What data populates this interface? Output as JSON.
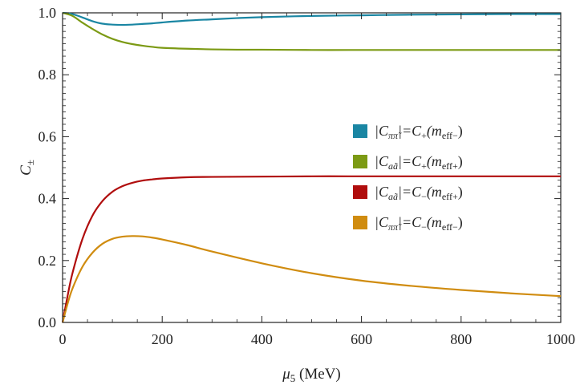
{
  "chart_data": {
    "type": "line",
    "title": "",
    "xlabel": "μ5 (MeV)",
    "ylabel": "C±",
    "xlim": [
      0,
      1000
    ],
    "ylim": [
      0,
      1.0
    ],
    "x_ticks": [
      0,
      200,
      400,
      600,
      800,
      1000
    ],
    "y_ticks": [
      0.0,
      0.2,
      0.4,
      0.6,
      0.8,
      1.0
    ],
    "x_tick_labels": [
      "0",
      "200",
      "400",
      "600",
      "800",
      "1000"
    ],
    "y_tick_labels": [
      "0.0",
      "0.2",
      "0.4",
      "0.6",
      "0.8",
      "1.0"
    ],
    "legend_position": "center-right",
    "series": [
      {
        "name": "|Cππ̃|=C+(meff−)",
        "color": "#1a86a3",
        "x": [
          0,
          20,
          40,
          60,
          80,
          100,
          120,
          140,
          160,
          180,
          200,
          250,
          300,
          350,
          400,
          500,
          600,
          700,
          800,
          900,
          1000
        ],
        "y": [
          1.0,
          0.996,
          0.985,
          0.973,
          0.965,
          0.962,
          0.961,
          0.962,
          0.964,
          0.966,
          0.969,
          0.975,
          0.979,
          0.983,
          0.986,
          0.99,
          0.992,
          0.994,
          0.995,
          0.996,
          0.996
        ]
      },
      {
        "name": "|Caã|=C+(meff+)",
        "color": "#7c9a14",
        "x": [
          0,
          20,
          40,
          60,
          80,
          100,
          120,
          140,
          160,
          180,
          200,
          250,
          300,
          350,
          400,
          500,
          600,
          700,
          800,
          900,
          1000
        ],
        "y": [
          1.0,
          0.99,
          0.968,
          0.948,
          0.93,
          0.916,
          0.906,
          0.899,
          0.894,
          0.89,
          0.887,
          0.884,
          0.882,
          0.881,
          0.881,
          0.88,
          0.88,
          0.88,
          0.88,
          0.88,
          0.88
        ]
      },
      {
        "name": "|Caã|=C−(meff+)",
        "color": "#b00d0d",
        "x": [
          0,
          10,
          20,
          40,
          60,
          80,
          100,
          120,
          140,
          160,
          180,
          200,
          250,
          300,
          400,
          500,
          600,
          700,
          800,
          900,
          1000
        ],
        "y": [
          0.0,
          0.085,
          0.16,
          0.27,
          0.345,
          0.392,
          0.422,
          0.44,
          0.451,
          0.458,
          0.462,
          0.465,
          0.469,
          0.47,
          0.471,
          0.472,
          0.472,
          0.472,
          0.472,
          0.472,
          0.472
        ]
      },
      {
        "name": "|Cππ̃|=C−(meff−)",
        "color": "#d08c10",
        "x": [
          0,
          10,
          20,
          40,
          60,
          80,
          100,
          120,
          140,
          160,
          180,
          200,
          250,
          300,
          400,
          500,
          600,
          700,
          800,
          900,
          1000
        ],
        "y": [
          0.0,
          0.06,
          0.11,
          0.18,
          0.225,
          0.254,
          0.27,
          0.277,
          0.279,
          0.278,
          0.274,
          0.268,
          0.25,
          0.229,
          0.191,
          0.159,
          0.135,
          0.118,
          0.105,
          0.094,
          0.085
        ]
      }
    ],
    "legend": [
      {
        "main": "|C",
        "sub": "ππ̃",
        "mid": "|=C",
        "sign": "+",
        "paren": "(m",
        "effsub": "eff−",
        "close": ")"
      },
      {
        "main": "|C",
        "sub": "aã",
        "mid": "|=C",
        "sign": "+",
        "paren": "(m",
        "effsub": "eff+",
        "close": ")"
      },
      {
        "main": "|C",
        "sub": "aã",
        "mid": "|=C",
        "sign": "−",
        "paren": "(m",
        "effsub": "eff+",
        "close": ")"
      },
      {
        "main": "|C",
        "sub": "ππ̃",
        "mid": "|=C",
        "sign": "−",
        "paren": "(m",
        "effsub": "eff−",
        "close": ")"
      }
    ],
    "axis_title_parts": {
      "x_mu": "μ",
      "x_sub": "5",
      "x_unit": " (MeV)",
      "y_main": "C",
      "y_sub": "±"
    }
  }
}
